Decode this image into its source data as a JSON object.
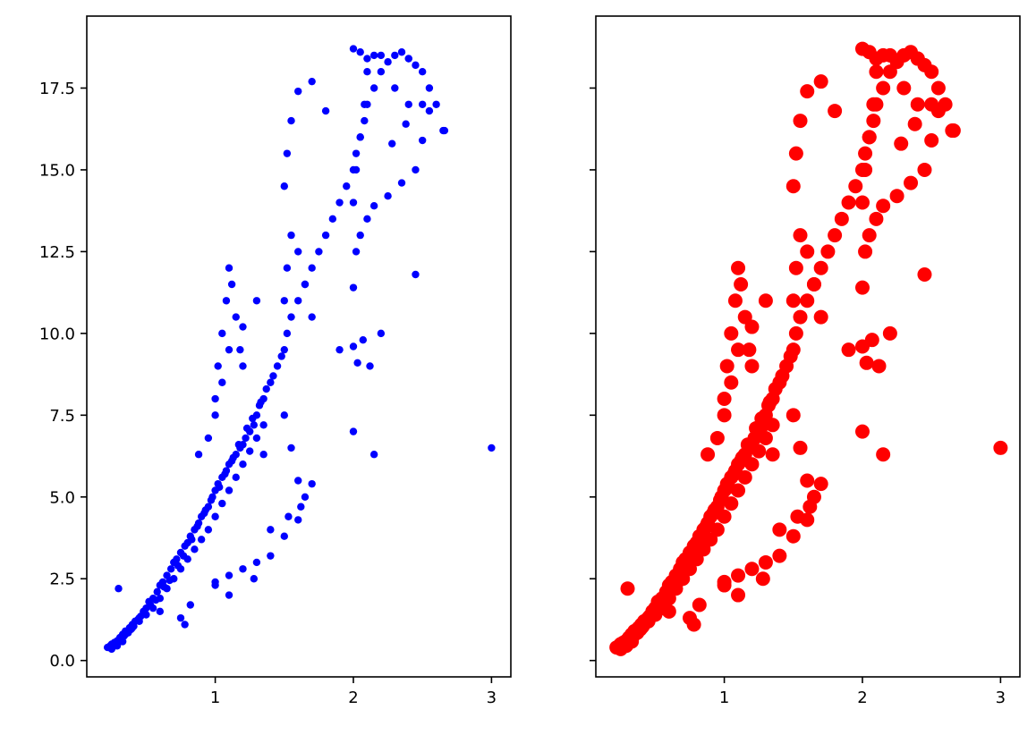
{
  "chart_data": [
    {
      "type": "scatter",
      "title": "",
      "xlabel": "",
      "ylabel": "",
      "xlim": [
        0.07,
        3.14
      ],
      "ylim": [
        -0.5,
        19.7
      ],
      "xticks": [
        1,
        2,
        3
      ],
      "xtick_labels": [
        "1",
        "2",
        "3"
      ],
      "yticks": [
        0.0,
        2.5,
        5.0,
        7.5,
        10.0,
        12.5,
        15.0,
        17.5
      ],
      "ytick_labels": [
        "0.0",
        "2.5",
        "5.0",
        "7.5",
        "10.0",
        "12.5",
        "15.0",
        "17.5"
      ],
      "show_ytick_labels": true,
      "grid": false,
      "legend": "none",
      "marker_color": "#0000ff",
      "marker_size": "small",
      "series": [
        {
          "x": [
            0.22,
            0.24,
            0.25,
            0.27,
            0.28,
            0.29,
            0.3,
            0.31,
            0.32,
            0.33,
            0.34,
            0.35,
            0.36,
            0.38,
            0.4,
            0.42,
            0.45,
            0.48,
            0.5,
            0.52,
            0.55,
            0.58,
            0.6,
            0.62,
            0.65,
            0.68,
            0.7,
            0.72,
            0.75,
            0.78,
            0.8,
            0.82,
            0.85,
            0.88,
            0.9,
            0.92,
            0.95,
            0.98,
            1.0,
            1.02,
            1.05,
            1.08,
            1.1,
            1.12,
            1.15,
            1.18,
            1.2,
            1.22,
            1.25,
            1.28,
            1.3,
            1.32,
            1.35,
            1.4,
            1.45,
            1.5,
            1.52,
            1.55,
            1.6,
            1.65,
            1.7,
            1.75,
            1.8,
            1.85,
            1.9,
            1.95,
            2.0,
            2.02,
            2.05,
            2.08,
            2.1,
            2.15,
            2.2,
            2.25,
            2.3,
            2.35,
            2.4,
            2.45,
            2.5,
            2.55,
            2.6,
            2.65,
            0.3,
            0.35,
            0.4,
            0.45,
            0.5,
            0.55,
            0.6,
            0.65,
            0.7,
            0.75,
            0.8,
            0.85,
            0.9,
            0.95,
            1.0,
            1.05,
            1.1,
            1.15,
            1.2,
            1.25,
            1.3,
            1.35,
            1.5,
            1.52,
            1.55,
            1.6,
            1.65,
            1.7,
            2.0,
            2.02,
            2.05,
            2.08,
            2.1,
            2.15,
            2.3,
            2.4,
            1.0,
            1.02,
            1.05,
            1.08,
            1.1,
            1.12,
            1.15,
            1.18,
            1.2,
            1.5,
            1.52,
            1.55,
            1.6,
            1.7,
            1.8,
            2.0,
            2.05,
            2.1,
            2.2,
            2.4,
            2.5,
            2.55,
            0.88,
            0.95,
            1.0,
            1.05,
            1.1,
            1.2,
            1.3,
            1.5,
            1.55,
            1.6,
            2.0,
            2.02,
            2.05,
            2.1,
            2.15,
            2.25,
            2.35,
            2.45,
            1.0,
            1.1,
            1.2,
            1.3,
            1.4,
            1.5,
            1.6,
            1.62,
            1.65,
            1.7,
            2.0,
            2.03,
            2.07,
            2.12,
            2.2,
            2.28,
            2.38,
            2.5,
            2.66,
            3.0,
            2.45,
            2.15,
            2.0,
            1.35,
            1.28,
            1.0,
            0.3,
            0.6,
            0.75,
            0.78,
            0.82,
            1.1,
            1.4,
            1.53,
            1.9,
            0.25,
            0.26,
            0.27,
            0.28,
            0.29,
            0.31,
            0.33,
            0.37,
            0.39,
            0.41,
            0.44,
            0.46,
            0.53,
            0.57,
            0.63,
            0.67,
            0.73,
            0.77,
            0.83,
            0.87,
            0.93,
            0.97,
            1.03,
            1.07,
            1.13,
            1.17,
            1.23,
            1.27,
            1.33,
            1.37,
            1.42,
            1.48
          ],
          "y": [
            0.4,
            0.45,
            0.5,
            0.55,
            0.5,
            0.6,
            0.55,
            0.7,
            0.65,
            0.8,
            0.75,
            0.9,
            0.85,
            1.0,
            1.1,
            1.2,
            1.3,
            1.5,
            1.6,
            1.8,
            1.9,
            2.1,
            2.3,
            2.4,
            2.6,
            2.8,
            3.0,
            3.1,
            3.3,
            3.5,
            3.6,
            3.8,
            4.0,
            4.2,
            4.4,
            4.5,
            4.7,
            5.0,
            5.2,
            5.4,
            5.6,
            5.8,
            6.0,
            6.1,
            6.3,
            6.5,
            6.6,
            6.8,
            7.0,
            7.2,
            7.5,
            7.8,
            8.0,
            8.5,
            9.0,
            9.5,
            10.0,
            10.5,
            11.0,
            11.5,
            12.0,
            12.5,
            13.0,
            13.5,
            14.0,
            14.5,
            15.0,
            15.5,
            16.0,
            16.5,
            17.0,
            17.5,
            18.0,
            18.3,
            18.5,
            18.6,
            18.4,
            18.2,
            18.0,
            17.5,
            17.0,
            16.2,
            0.6,
            0.8,
            1.0,
            1.2,
            1.4,
            1.6,
            1.9,
            2.2,
            2.5,
            2.8,
            3.1,
            3.4,
            3.7,
            4.0,
            4.4,
            4.8,
            5.2,
            5.6,
            6.0,
            6.4,
            6.8,
            7.2,
            11.0,
            12.0,
            13.0,
            12.5,
            11.5,
            10.5,
            14.0,
            15.0,
            16.0,
            17.0,
            18.0,
            18.5,
            17.5,
            17.0,
            8.0,
            9.0,
            10.0,
            11.0,
            12.0,
            11.5,
            10.5,
            9.5,
            9.0,
            14.5,
            15.5,
            16.5,
            17.4,
            17.7,
            16.8,
            18.7,
            18.6,
            18.4,
            18.5,
            18.4,
            17.0,
            16.8,
            6.3,
            6.8,
            7.5,
            8.5,
            9.5,
            10.2,
            11.0,
            7.5,
            6.5,
            5.5,
            11.4,
            12.5,
            13.0,
            13.5,
            13.9,
            14.2,
            14.6,
            15.0,
            2.4,
            2.6,
            2.8,
            3.0,
            3.2,
            3.8,
            4.3,
            4.7,
            5.0,
            5.4,
            9.6,
            9.1,
            9.8,
            9.0,
            10.0,
            15.8,
            16.4,
            15.9,
            16.2,
            6.5,
            11.8,
            6.3,
            7.0,
            6.3,
            2.5,
            2.3,
            2.2,
            1.5,
            1.3,
            1.1,
            1.7,
            2.0,
            4.0,
            4.4,
            9.5,
            0.35,
            0.42,
            0.48,
            0.52,
            0.45,
            0.62,
            0.58,
            0.85,
            0.95,
            1.05,
            1.25,
            1.35,
            1.7,
            1.85,
            2.25,
            2.45,
            2.9,
            3.2,
            3.7,
            4.1,
            4.6,
            4.9,
            5.3,
            5.7,
            6.2,
            6.6,
            7.1,
            7.4,
            7.9,
            8.3,
            8.7,
            9.3
          ]
        }
      ]
    },
    {
      "type": "scatter",
      "title": "",
      "xlabel": "",
      "ylabel": "",
      "xlim": [
        0.07,
        3.14
      ],
      "ylim": [
        -0.5,
        19.7
      ],
      "xticks": [
        1,
        2,
        3
      ],
      "xtick_labels": [
        "1",
        "2",
        "3"
      ],
      "yticks": [
        0.0,
        2.5,
        5.0,
        7.5,
        10.0,
        12.5,
        15.0,
        17.5
      ],
      "ytick_labels": [
        "0.0",
        "2.5",
        "5.0",
        "7.5",
        "10.0",
        "12.5",
        "15.0",
        "17.5"
      ],
      "show_ytick_labels": false,
      "shared_y": true,
      "grid": false,
      "legend": "none",
      "marker_color": "#ff0000",
      "marker_size": "large",
      "series": [
        {
          "x": [
            0.22,
            0.24,
            0.25,
            0.27,
            0.28,
            0.29,
            0.3,
            0.31,
            0.32,
            0.33,
            0.34,
            0.35,
            0.36,
            0.38,
            0.4,
            0.42,
            0.45,
            0.48,
            0.5,
            0.52,
            0.55,
            0.58,
            0.6,
            0.62,
            0.65,
            0.68,
            0.7,
            0.72,
            0.75,
            0.78,
            0.8,
            0.82,
            0.85,
            0.88,
            0.9,
            0.92,
            0.95,
            0.98,
            1.0,
            1.02,
            1.05,
            1.08,
            1.1,
            1.12,
            1.15,
            1.18,
            1.2,
            1.22,
            1.25,
            1.28,
            1.3,
            1.32,
            1.35,
            1.4,
            1.45,
            1.5,
            1.52,
            1.55,
            1.6,
            1.65,
            1.7,
            1.75,
            1.8,
            1.85,
            1.9,
            1.95,
            2.0,
            2.02,
            2.05,
            2.08,
            2.1,
            2.15,
            2.2,
            2.25,
            2.3,
            2.35,
            2.4,
            2.45,
            2.5,
            2.55,
            2.6,
            2.65,
            0.3,
            0.35,
            0.4,
            0.45,
            0.5,
            0.55,
            0.6,
            0.65,
            0.7,
            0.75,
            0.8,
            0.85,
            0.9,
            0.95,
            1.0,
            1.05,
            1.1,
            1.15,
            1.2,
            1.25,
            1.3,
            1.35,
            1.5,
            1.52,
            1.55,
            1.6,
            1.65,
            1.7,
            2.0,
            2.02,
            2.05,
            2.08,
            2.1,
            2.15,
            2.3,
            2.4,
            1.0,
            1.02,
            1.05,
            1.08,
            1.1,
            1.12,
            1.15,
            1.18,
            1.2,
            1.5,
            1.52,
            1.55,
            1.6,
            1.7,
            1.8,
            2.0,
            2.05,
            2.1,
            2.2,
            2.4,
            2.5,
            2.55,
            0.88,
            0.95,
            1.0,
            1.05,
            1.1,
            1.2,
            1.3,
            1.5,
            1.55,
            1.6,
            2.0,
            2.02,
            2.05,
            2.1,
            2.15,
            2.25,
            2.35,
            2.45,
            1.0,
            1.1,
            1.2,
            1.3,
            1.4,
            1.5,
            1.6,
            1.62,
            1.65,
            1.7,
            2.0,
            2.03,
            2.07,
            2.12,
            2.2,
            2.28,
            2.38,
            2.5,
            2.66,
            3.0,
            2.45,
            2.15,
            2.0,
            1.35,
            1.28,
            1.0,
            0.3,
            0.6,
            0.75,
            0.78,
            0.82,
            1.1,
            1.4,
            1.53,
            1.9,
            0.25,
            0.26,
            0.27,
            0.28,
            0.29,
            0.31,
            0.33,
            0.37,
            0.39,
            0.41,
            0.44,
            0.46,
            0.53,
            0.57,
            0.63,
            0.67,
            0.73,
            0.77,
            0.83,
            0.87,
            0.93,
            0.97,
            1.03,
            1.07,
            1.13,
            1.17,
            1.23,
            1.27,
            1.33,
            1.37,
            1.42,
            1.48
          ],
          "y": [
            0.4,
            0.45,
            0.5,
            0.55,
            0.5,
            0.6,
            0.55,
            0.7,
            0.65,
            0.8,
            0.75,
            0.9,
            0.85,
            1.0,
            1.1,
            1.2,
            1.3,
            1.5,
            1.6,
            1.8,
            1.9,
            2.1,
            2.3,
            2.4,
            2.6,
            2.8,
            3.0,
            3.1,
            3.3,
            3.5,
            3.6,
            3.8,
            4.0,
            4.2,
            4.4,
            4.5,
            4.7,
            5.0,
            5.2,
            5.4,
            5.6,
            5.8,
            6.0,
            6.1,
            6.3,
            6.5,
            6.6,
            6.8,
            7.0,
            7.2,
            7.5,
            7.8,
            8.0,
            8.5,
            9.0,
            9.5,
            10.0,
            10.5,
            11.0,
            11.5,
            12.0,
            12.5,
            13.0,
            13.5,
            14.0,
            14.5,
            15.0,
            15.5,
            16.0,
            16.5,
            17.0,
            17.5,
            18.0,
            18.3,
            18.5,
            18.6,
            18.4,
            18.2,
            18.0,
            17.5,
            17.0,
            16.2,
            0.6,
            0.8,
            1.0,
            1.2,
            1.4,
            1.6,
            1.9,
            2.2,
            2.5,
            2.8,
            3.1,
            3.4,
            3.7,
            4.0,
            4.4,
            4.8,
            5.2,
            5.6,
            6.0,
            6.4,
            6.8,
            7.2,
            11.0,
            12.0,
            13.0,
            12.5,
            11.5,
            10.5,
            14.0,
            15.0,
            16.0,
            17.0,
            18.0,
            18.5,
            17.5,
            17.0,
            8.0,
            9.0,
            10.0,
            11.0,
            12.0,
            11.5,
            10.5,
            9.5,
            9.0,
            14.5,
            15.5,
            16.5,
            17.4,
            17.7,
            16.8,
            18.7,
            18.6,
            18.4,
            18.5,
            18.4,
            17.0,
            16.8,
            6.3,
            6.8,
            7.5,
            8.5,
            9.5,
            10.2,
            11.0,
            7.5,
            6.5,
            5.5,
            11.4,
            12.5,
            13.0,
            13.5,
            13.9,
            14.2,
            14.6,
            15.0,
            2.4,
            2.6,
            2.8,
            3.0,
            3.2,
            3.8,
            4.3,
            4.7,
            5.0,
            5.4,
            9.6,
            9.1,
            9.8,
            9.0,
            10.0,
            15.8,
            16.4,
            15.9,
            16.2,
            6.5,
            11.8,
            6.3,
            7.0,
            6.3,
            2.5,
            2.3,
            2.2,
            1.5,
            1.3,
            1.1,
            1.7,
            2.0,
            4.0,
            4.4,
            9.5,
            0.35,
            0.42,
            0.48,
            0.52,
            0.45,
            0.62,
            0.58,
            0.85,
            0.95,
            1.05,
            1.25,
            1.35,
            1.7,
            1.85,
            2.25,
            2.45,
            2.9,
            3.2,
            3.7,
            4.1,
            4.6,
            4.9,
            5.3,
            5.7,
            6.2,
            6.6,
            7.1,
            7.4,
            7.9,
            8.3,
            8.7,
            9.3
          ]
        }
      ]
    }
  ]
}
